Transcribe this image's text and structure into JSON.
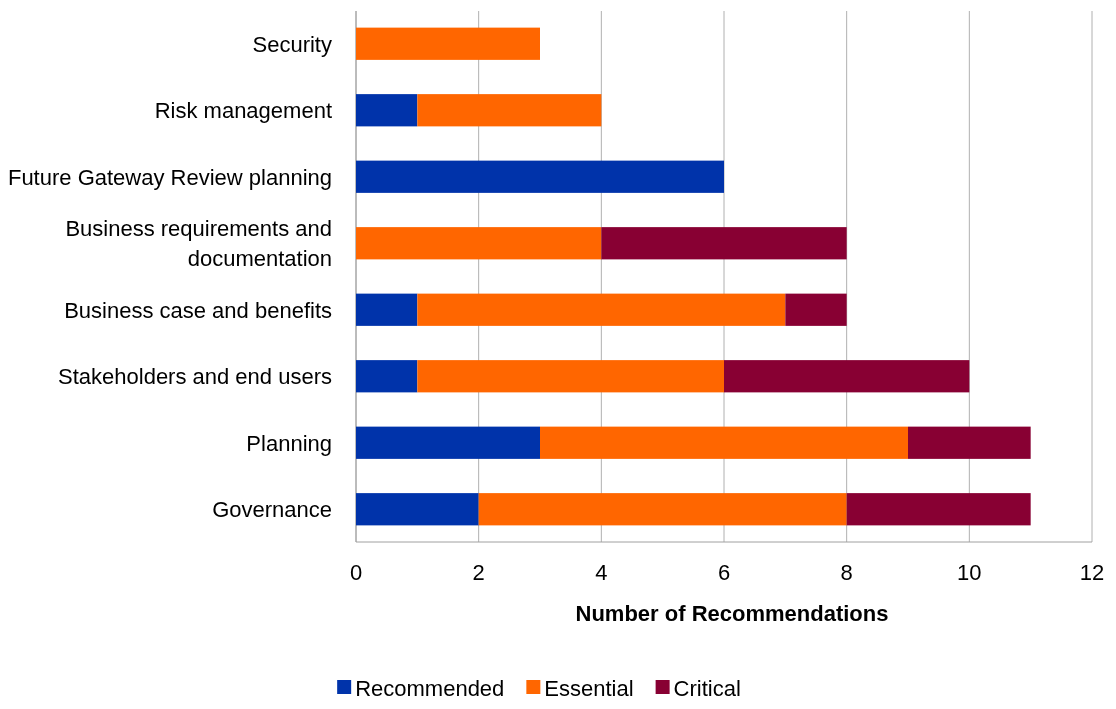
{
  "chart_data": {
    "type": "bar",
    "orientation": "horizontal",
    "stacked": true,
    "xlabel": "Number of Recommendations",
    "categories": [
      "Security",
      "Risk management",
      "Future Gateway Review planning",
      "Business requirements and documentation",
      "Business case and benefits",
      "Stakeholders and end users",
      "Planning",
      "Governance"
    ],
    "series": [
      {
        "name": "Recommended",
        "color": "#0033aa",
        "values": [
          0,
          1,
          6,
          0,
          1,
          1,
          3,
          2
        ]
      },
      {
        "name": "Essential",
        "color": "#ff6600",
        "values": [
          3,
          3,
          0,
          4,
          6,
          5,
          6,
          6
        ]
      },
      {
        "name": "Critical",
        "color": "#880033",
        "values": [
          0,
          0,
          0,
          4,
          1,
          4,
          2,
          3
        ]
      }
    ],
    "xlim": [
      0,
      12
    ],
    "xticks": [
      0,
      2,
      4,
      6,
      8,
      10,
      12
    ],
    "grid": "x",
    "legend": "bottom"
  }
}
